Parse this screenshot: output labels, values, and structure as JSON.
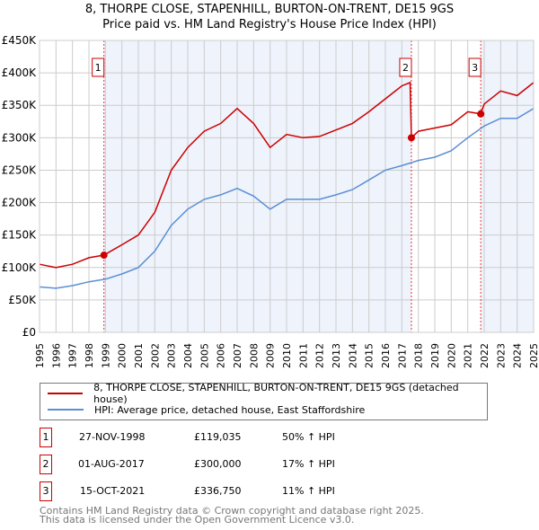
{
  "title": "8, THORPE CLOSE, STAPENHILL, BURTON-ON-TRENT, DE15 9GS",
  "subtitle": "Price paid vs. HM Land Registry's House Price Index (HPI)",
  "legend": {
    "property": "8, THORPE CLOSE, STAPENHILL, BURTON-ON-TRENT, DE15 9GS (detached house)",
    "hpi": "HPI: Average price, detached house, East Staffordshire"
  },
  "colors": {
    "property": "#cc0000",
    "hpi": "#5b8fd4",
    "shade": "#eef3fc"
  },
  "sales": [
    {
      "n": "1",
      "date": "27-NOV-1998",
      "price": "£119,035",
      "hpi": "50% ↑ HPI",
      "x": 1998.91,
      "y": 119035
    },
    {
      "n": "2",
      "date": "01-AUG-2017",
      "price": "£300,000",
      "hpi": "17% ↑ HPI",
      "x": 2017.58,
      "y": 300000
    },
    {
      "n": "3",
      "date": "15-OCT-2021",
      "price": "£336,750",
      "hpi": "11% ↑ HPI",
      "x": 2021.79,
      "y": 336750
    }
  ],
  "footer": [
    "Contains HM Land Registry data © Crown copyright and database right 2025.",
    "This data is licensed under the Open Government Licence v3.0."
  ],
  "chart_data": {
    "type": "line",
    "xlim": [
      1995,
      2025
    ],
    "ylim": [
      0,
      450000
    ],
    "xticks": [
      "1995",
      "1996",
      "1997",
      "1998",
      "1999",
      "2000",
      "2001",
      "2002",
      "2003",
      "2004",
      "2005",
      "2006",
      "2007",
      "2008",
      "2009",
      "2010",
      "2011",
      "2012",
      "2013",
      "2014",
      "2015",
      "2016",
      "2017",
      "2018",
      "2019",
      "2020",
      "2021",
      "2022",
      "2023",
      "2024",
      "2025"
    ],
    "yticks": [
      {
        "v": 0,
        "l": "£0"
      },
      {
        "v": 50000,
        "l": "£50K"
      },
      {
        "v": 100000,
        "l": "£100K"
      },
      {
        "v": 150000,
        "l": "£150K"
      },
      {
        "v": 200000,
        "l": "£200K"
      },
      {
        "v": 250000,
        "l": "£250K"
      },
      {
        "v": 300000,
        "l": "£300K"
      },
      {
        "v": 350000,
        "l": "£350K"
      },
      {
        "v": 400000,
        "l": "£400K"
      },
      {
        "v": 450000,
        "l": "£450K"
      }
    ],
    "series": [
      {
        "name": "property",
        "x": [
          1995,
          1996,
          1997,
          1998,
          1998.91,
          2000,
          2001,
          2002,
          2003,
          2004,
          2005,
          2006,
          2007,
          2008,
          2009,
          2010,
          2011,
          2012,
          2013,
          2014,
          2015,
          2016,
          2017,
          2017.5,
          2017.58,
          2018,
          2019,
          2020,
          2021,
          2021.79,
          2022,
          2023,
          2024,
          2025
        ],
        "y": [
          105000,
          100000,
          105000,
          115000,
          119035,
          135000,
          150000,
          185000,
          250000,
          285000,
          310000,
          322000,
          345000,
          322000,
          285000,
          305000,
          300000,
          302000,
          312000,
          322000,
          340000,
          360000,
          380000,
          385000,
          300000,
          310000,
          315000,
          320000,
          340000,
          336750,
          352000,
          372000,
          365000,
          385000
        ]
      },
      {
        "name": "hpi",
        "x": [
          1995,
          1996,
          1997,
          1998,
          1999,
          2000,
          2001,
          2002,
          2003,
          2004,
          2005,
          2006,
          2007,
          2008,
          2009,
          2010,
          2011,
          2012,
          2013,
          2014,
          2015,
          2016,
          2017,
          2018,
          2019,
          2020,
          2021,
          2022,
          2023,
          2024,
          2025
        ],
        "y": [
          70000,
          68000,
          72000,
          78000,
          82000,
          90000,
          100000,
          125000,
          165000,
          190000,
          205000,
          212000,
          222000,
          210000,
          190000,
          205000,
          205000,
          205000,
          212000,
          220000,
          235000,
          250000,
          257000,
          265000,
          270000,
          280000,
          300000,
          318000,
          330000,
          330000,
          345000
        ]
      }
    ]
  }
}
